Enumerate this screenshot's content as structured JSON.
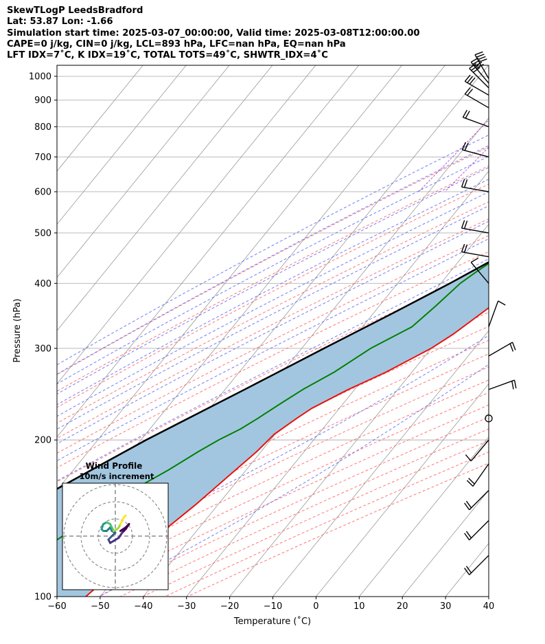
{
  "header": {
    "line1": "SkewTLogP LeedsBradford",
    "line2": "Lat: 53.87   Lon: -1.66",
    "line3": "Simulation start time: 2025-03-07_00:00:00, Valid time: 2025-03-08T12:00:00.00",
    "line4": "CAPE=0 j/kg, CIN=0 j/kg, LCL=893 hPa, LFC=nan hPa, EQ=nan hPa",
    "line5": "LFT IDX=7˚C, K IDX=19˚C, TOTAL TOTS=49˚C, SHWTR_IDX=4˚C"
  },
  "colors": {
    "temperature": "#e8130d",
    "dewpoint": "#008000",
    "parcel": "#000000",
    "shade": "#a3c6e0",
    "dry_adiabat": "#ff6060",
    "moist_adiabat": "#4f5ef0",
    "mixing_ratio": "#a030c0",
    "isotherm": "#999999"
  },
  "chart_data": [
    {
      "type": "line",
      "subtype": "skew-t log-p",
      "xlabel": "Temperature (˚C)",
      "ylabel": "Pressure (hPa)",
      "xlim": [
        -60,
        40
      ],
      "ylim": [
        1050,
        100
      ],
      "y_scale": "log",
      "x_ticks": [
        -60,
        -50,
        -40,
        -30,
        -20,
        -10,
        0,
        10,
        20,
        30,
        40
      ],
      "y_ticks": [
        1000,
        900,
        800,
        700,
        600,
        500,
        400,
        300,
        200,
        100
      ],
      "grid": true,
      "series": [
        {
          "key": "temperature",
          "points": [
            [
              12.3,
              960
            ],
            [
              11.3,
              930
            ],
            [
              9.5,
              900
            ],
            [
              8.2,
              850
            ],
            [
              8.1,
              800
            ],
            [
              6.8,
              750
            ],
            [
              5.6,
              700
            ],
            [
              4.0,
              650
            ],
            [
              2.0,
              600
            ],
            [
              -0.7,
              550
            ],
            [
              -3.5,
              500
            ],
            [
              -7.3,
              450
            ],
            [
              -11.0,
              400
            ],
            [
              -14.2,
              360
            ],
            [
              -17.5,
              320
            ],
            [
              -20.0,
              300
            ],
            [
              -26.0,
              270
            ],
            [
              -31.5,
              250
            ],
            [
              -36.4,
              230
            ],
            [
              -38.0,
              220
            ],
            [
              -40.2,
              205
            ],
            [
              -41.0,
              190
            ],
            [
              -43.0,
              170
            ],
            [
              -45.2,
              150
            ],
            [
              -47.5,
              135
            ],
            [
              -49.5,
              125
            ],
            [
              -51.0,
              115
            ],
            [
              -52.0,
              108
            ],
            [
              -52.8,
              103
            ],
            [
              -53.3,
              100
            ]
          ]
        },
        {
          "key": "dewpoint",
          "points": [
            [
              6.0,
              990
            ],
            [
              5.8,
              960
            ],
            [
              4.5,
              900
            ],
            [
              3.0,
              860
            ],
            [
              0.5,
              810
            ],
            [
              -0.8,
              790
            ],
            [
              -2.5,
              740
            ],
            [
              -4.7,
              700
            ],
            [
              -6.8,
              650
            ],
            [
              -11.0,
              580
            ],
            [
              -15.5,
              530
            ],
            [
              -20.0,
              470
            ],
            [
              -24.0,
              420
            ],
            [
              -25.5,
              400
            ],
            [
              -27.0,
              360
            ],
            [
              -28.5,
              330
            ],
            [
              -34.0,
              300
            ],
            [
              -38.0,
              270
            ],
            [
              -42.0,
              250
            ],
            [
              -44.5,
              235
            ],
            [
              -47.0,
              220
            ],
            [
              -49.0,
              210
            ],
            [
              -52.0,
              200
            ],
            [
              -54.5,
              190
            ],
            [
              -58.0,
              175
            ],
            [
              -61.0,
              165
            ],
            [
              -65.0,
              155
            ],
            [
              -69.0,
              135
            ],
            [
              -73.0,
              120
            ],
            [
              -76.0,
              110
            ],
            [
              -78.0,
              100
            ]
          ]
        },
        {
          "key": "parcel",
          "points": [
            [
              12.5,
              990
            ],
            [
              9.0,
              940
            ],
            [
              8.1,
              893
            ],
            [
              6.5,
              850
            ],
            [
              4.5,
              800
            ],
            [
              2.2,
              750
            ],
            [
              -0.5,
              700
            ],
            [
              -3.6,
              650
            ],
            [
              -7.2,
              600
            ],
            [
              -11.4,
              550
            ],
            [
              -16.2,
              500
            ],
            [
              -21.6,
              450
            ],
            [
              -27.9,
              400
            ],
            [
              -35.6,
              350
            ],
            [
              -44.8,
              300
            ],
            [
              -55.5,
              250
            ],
            [
              -68.8,
              200
            ],
            [
              -84.0,
              150
            ],
            [
              -93.5,
              125
            ],
            [
              -102.0,
              110
            ],
            [
              -106.0,
              100
            ]
          ]
        }
      ]
    },
    {
      "type": "scatter",
      "subtype": "hodograph",
      "title": "Wind Profile",
      "subtitle": "10m/s increment",
      "rings": [
        10,
        20,
        30
      ],
      "points": [
        [
          3,
          3
        ],
        [
          6,
          5
        ],
        [
          8,
          7
        ],
        [
          6,
          4
        ],
        [
          4,
          2
        ],
        [
          2,
          -1
        ],
        [
          -3,
          -4
        ],
        [
          -4,
          -2
        ],
        [
          -2,
          0
        ],
        [
          0,
          2
        ],
        [
          -2,
          3
        ],
        [
          -3,
          5
        ],
        [
          -5,
          3
        ],
        [
          -7,
          3
        ],
        [
          -8,
          4
        ],
        [
          -7,
          7
        ],
        [
          -5,
          8
        ],
        [
          -3,
          7
        ],
        [
          -2,
          5
        ],
        [
          -1,
          3
        ],
        [
          1,
          4
        ],
        [
          2,
          5
        ],
        [
          3,
          7
        ],
        [
          4,
          9
        ],
        [
          5,
          11
        ],
        [
          6,
          12
        ]
      ]
    }
  ],
  "wind_barbs": [
    [
      990,
      35,
      330
    ],
    [
      970,
      35,
      320
    ],
    [
      950,
      30,
      315
    ],
    [
      920,
      25,
      300
    ],
    [
      870,
      20,
      300
    ],
    [
      800,
      15,
      290
    ],
    [
      700,
      15,
      285
    ],
    [
      600,
      15,
      280
    ],
    [
      500,
      15,
      280
    ],
    [
      450,
      15,
      280
    ],
    [
      400,
      10,
      320
    ],
    [
      330,
      10,
      20
    ],
    [
      290,
      15,
      60
    ],
    [
      250,
      15,
      70
    ],
    [
      220,
      0,
      0
    ],
    [
      200,
      10,
      220
    ],
    [
      180,
      20,
      215
    ],
    [
      160,
      20,
      225
    ],
    [
      140,
      20,
      225
    ],
    [
      120,
      20,
      225
    ]
  ]
}
